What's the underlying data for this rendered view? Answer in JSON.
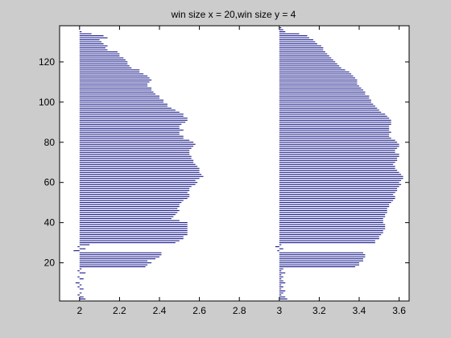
{
  "chart_data": {
    "type": "bar",
    "orientation": "horizontal",
    "title": "win size x = 20,win size y = 4",
    "xlabel": "",
    "ylabel": "",
    "xlim": [
      1.9,
      3.65
    ],
    "ylim": [
      1,
      138
    ],
    "xticks": [
      2,
      2.2,
      2.4,
      2.6,
      2.8,
      3,
      3.2,
      3.4,
      3.6
    ],
    "xtick_labels": [
      "2",
      "2.2",
      "2.4",
      "2.6",
      "2.8",
      "3",
      "3.2",
      "3.4",
      "3.6"
    ],
    "yticks": [
      20,
      40,
      60,
      80,
      100,
      120
    ],
    "ytick_labels": [
      "20",
      "40",
      "60",
      "80",
      "100",
      "120"
    ],
    "grid": false,
    "bar_color": "#00007f",
    "series": [
      {
        "base": 2.0,
        "y_values": [
          2,
          3,
          4,
          5,
          6,
          7,
          8,
          9,
          10,
          11,
          12,
          13,
          14,
          15,
          16,
          17,
          18,
          19,
          20,
          21,
          22,
          23,
          24,
          25,
          26,
          27,
          28,
          29,
          30,
          31,
          32,
          33,
          34,
          35,
          36,
          37,
          38,
          39,
          40,
          41,
          42,
          43,
          44,
          45,
          46,
          47,
          48,
          49,
          50,
          51,
          52,
          53,
          54,
          55,
          56,
          57,
          58,
          59,
          60,
          61,
          62,
          63,
          64,
          65,
          66,
          67,
          68,
          69,
          70,
          71,
          72,
          73,
          74,
          75,
          76,
          77,
          78,
          79,
          80,
          81,
          82,
          83,
          84,
          85,
          86,
          87,
          88,
          89,
          90,
          91,
          92,
          93,
          94,
          95,
          96,
          97,
          98,
          99,
          100,
          101,
          102,
          103,
          104,
          105,
          106,
          107,
          108,
          109,
          110,
          111,
          112,
          113,
          114,
          115,
          116,
          117,
          118,
          119,
          120,
          121,
          122,
          123,
          124,
          125,
          126,
          127,
          128,
          129,
          130,
          131,
          132,
          133,
          134,
          135,
          136,
          137
        ],
        "x_values": [
          2.03,
          2.02,
          1.99,
          2.01,
          2.0,
          2.02,
          1.99,
          2.01,
          1.98,
          2.0,
          2.02,
          1.99,
          2.0,
          2.03,
          1.99,
          2.01,
          2.33,
          2.34,
          2.36,
          2.34,
          2.38,
          2.4,
          2.41,
          2.41,
          1.97,
          2.03,
          1.99,
          2.05,
          2.48,
          2.5,
          2.52,
          2.52,
          2.54,
          2.54,
          2.54,
          2.54,
          2.54,
          2.54,
          2.54,
          2.5,
          2.46,
          2.47,
          2.48,
          2.49,
          2.5,
          2.49,
          2.5,
          2.5,
          2.51,
          2.52,
          2.54,
          2.55,
          2.55,
          2.54,
          2.55,
          2.55,
          2.56,
          2.58,
          2.59,
          2.58,
          2.6,
          2.62,
          2.61,
          2.6,
          2.6,
          2.6,
          2.59,
          2.58,
          2.57,
          2.57,
          2.56,
          2.56,
          2.55,
          2.55,
          2.55,
          2.56,
          2.57,
          2.58,
          2.57,
          2.55,
          2.52,
          2.52,
          2.5,
          2.5,
          2.52,
          2.5,
          2.5,
          2.51,
          2.53,
          2.54,
          2.54,
          2.52,
          2.52,
          2.5,
          2.48,
          2.46,
          2.44,
          2.44,
          2.42,
          2.42,
          2.4,
          2.4,
          2.38,
          2.37,
          2.36,
          2.36,
          2.34,
          2.34,
          2.35,
          2.36,
          2.35,
          2.34,
          2.32,
          2.3,
          2.3,
          2.26,
          2.25,
          2.24,
          2.24,
          2.23,
          2.22,
          2.2,
          2.2,
          2.19,
          2.14,
          2.13,
          2.14,
          2.12,
          2.11,
          2.1,
          2.14,
          2.12,
          2.06,
          2.01,
          2.0,
          2.0
        ]
      },
      {
        "base": 3.0,
        "y_values": [
          2,
          3,
          4,
          5,
          6,
          7,
          8,
          9,
          10,
          11,
          12,
          13,
          14,
          15,
          16,
          17,
          18,
          19,
          20,
          21,
          22,
          23,
          24,
          25,
          26,
          27,
          28,
          29,
          30,
          31,
          32,
          33,
          34,
          35,
          36,
          37,
          38,
          39,
          40,
          41,
          42,
          43,
          44,
          45,
          46,
          47,
          48,
          49,
          50,
          51,
          52,
          53,
          54,
          55,
          56,
          57,
          58,
          59,
          60,
          61,
          62,
          63,
          64,
          65,
          66,
          67,
          68,
          69,
          70,
          71,
          72,
          73,
          74,
          75,
          76,
          77,
          78,
          79,
          80,
          81,
          82,
          83,
          84,
          85,
          86,
          87,
          88,
          89,
          90,
          91,
          92,
          93,
          94,
          95,
          96,
          97,
          98,
          99,
          100,
          101,
          102,
          103,
          104,
          105,
          106,
          107,
          108,
          109,
          110,
          111,
          112,
          113,
          114,
          115,
          116,
          117,
          118,
          119,
          120,
          121,
          122,
          123,
          124,
          125,
          126,
          127,
          128,
          129,
          130,
          131,
          132,
          133,
          134,
          135,
          136,
          137
        ],
        "x_values": [
          3.04,
          3.03,
          3.01,
          3.02,
          3.03,
          3.01,
          3.02,
          3.01,
          3.03,
          3.02,
          3.01,
          3.02,
          3.01,
          3.03,
          3.01,
          3.02,
          3.38,
          3.4,
          3.4,
          3.42,
          3.42,
          3.43,
          3.43,
          3.42,
          2.99,
          3.02,
          2.98,
          3.01,
          3.48,
          3.48,
          3.5,
          3.5,
          3.51,
          3.52,
          3.52,
          3.53,
          3.53,
          3.53,
          3.52,
          3.52,
          3.52,
          3.53,
          3.53,
          3.54,
          3.54,
          3.54,
          3.55,
          3.55,
          3.56,
          3.57,
          3.58,
          3.58,
          3.57,
          3.58,
          3.59,
          3.59,
          3.6,
          3.61,
          3.6,
          3.61,
          3.62,
          3.62,
          3.61,
          3.6,
          3.59,
          3.58,
          3.58,
          3.57,
          3.58,
          3.59,
          3.59,
          3.6,
          3.6,
          3.58,
          3.58,
          3.59,
          3.6,
          3.6,
          3.59,
          3.58,
          3.56,
          3.55,
          3.55,
          3.56,
          3.55,
          3.55,
          3.55,
          3.56,
          3.56,
          3.56,
          3.55,
          3.54,
          3.53,
          3.51,
          3.5,
          3.49,
          3.48,
          3.47,
          3.46,
          3.46,
          3.45,
          3.45,
          3.43,
          3.43,
          3.42,
          3.41,
          3.4,
          3.39,
          3.39,
          3.39,
          3.38,
          3.37,
          3.36,
          3.35,
          3.33,
          3.31,
          3.3,
          3.29,
          3.28,
          3.27,
          3.26,
          3.25,
          3.24,
          3.23,
          3.22,
          3.22,
          3.21,
          3.19,
          3.18,
          3.17,
          3.15,
          3.14,
          3.1,
          3.03,
          3.02,
          3.01
        ]
      }
    ]
  }
}
